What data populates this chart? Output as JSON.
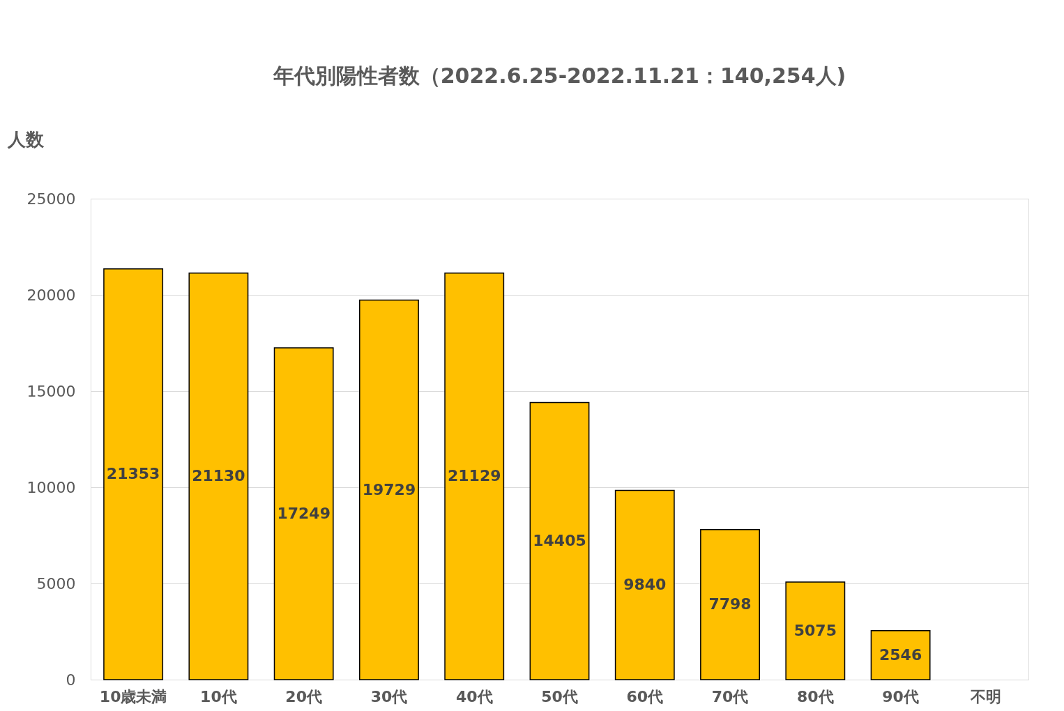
{
  "chart_data": {
    "type": "bar",
    "title": "年代別陽性者数（2022.6.25-2022.11.21：140,254人)",
    "ylabel": "人数",
    "categories": [
      "10歳未満",
      "10代",
      "20代",
      "30代",
      "40代",
      "50代",
      "60代",
      "70代",
      "80代",
      "90代",
      "不明"
    ],
    "values": [
      21353,
      21130,
      17249,
      19729,
      21129,
      14405,
      9840,
      7798,
      5075,
      2546,
      0
    ],
    "value_labels": [
      "21353",
      "21130",
      "17249",
      "19729",
      "21129",
      "14405",
      "9840",
      "7798",
      "5075",
      "2546",
      null
    ],
    "color": "#ffc000",
    "ylim": [
      0,
      25000
    ],
    "yticks": [
      0,
      5000,
      10000,
      15000,
      20000,
      25000
    ],
    "grid": "y"
  }
}
